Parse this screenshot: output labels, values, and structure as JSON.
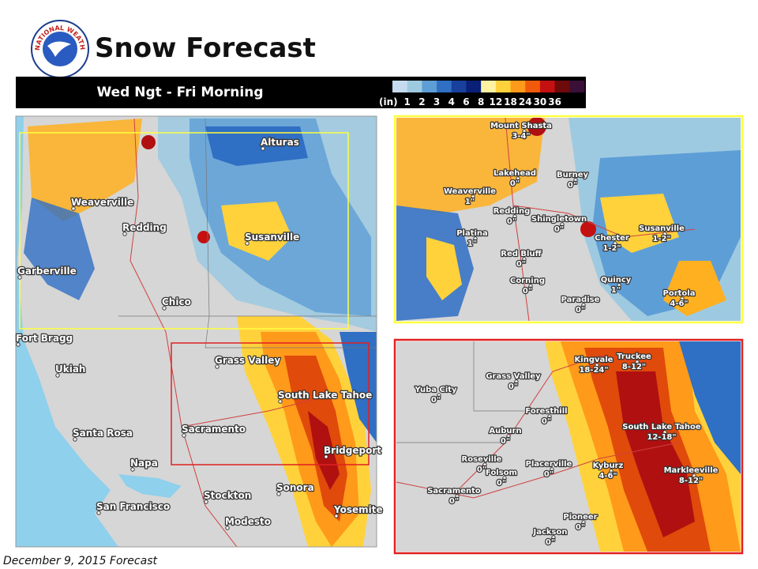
{
  "header": {
    "title": "Snow Forecast",
    "logo_text": "NATIONAL WEATHER SERVICE"
  },
  "banner": {
    "period": "Wed Ngt - Fri Morning"
  },
  "legend": {
    "unit": "(in)",
    "labels": [
      "1",
      "2",
      "3",
      "4",
      "6",
      "8",
      "12",
      "18",
      "24",
      "30",
      "36"
    ],
    "colors": [
      "#c6dbef",
      "#9ecae1",
      "#5e9ed6",
      "#2f6fc4",
      "#17419c",
      "#0a1f78",
      "#fff2a0",
      "#ffd23c",
      "#ff9a1a",
      "#f05a0a",
      "#c41010",
      "#6e0a0a",
      "#3b1038"
    ]
  },
  "main_map": {
    "places": [
      "Alturas",
      "Weaverville",
      "Redding",
      "Susanville",
      "Garberville",
      "Chico",
      "Fort Bragg",
      "Ukiah",
      "Grass Valley",
      "South Lake Tahoe",
      "Santa Rosa",
      "Sacramento",
      "Bridgeport",
      "Napa",
      "San Francisco",
      "Stockton",
      "Sonora",
      "Yosemite",
      "Modesto"
    ]
  },
  "north_inset": {
    "places": [
      {
        "name": "Mount Shasta",
        "amount": "3-4\""
      },
      {
        "name": "Lakehead",
        "amount": "0\""
      },
      {
        "name": "Burney",
        "amount": "0\""
      },
      {
        "name": "Weaverville",
        "amount": "1\""
      },
      {
        "name": "Redding",
        "amount": "0\""
      },
      {
        "name": "Shingletown",
        "amount": "0\""
      },
      {
        "name": "Platina",
        "amount": "1\""
      },
      {
        "name": "Chester",
        "amount": "1-2\""
      },
      {
        "name": "Susanville",
        "amount": "1-2\""
      },
      {
        "name": "Red Bluff",
        "amount": "0\""
      },
      {
        "name": "Corning",
        "amount": "0\""
      },
      {
        "name": "Quincy",
        "amount": "1\""
      },
      {
        "name": "Paradise",
        "amount": "0\""
      },
      {
        "name": "Portola",
        "amount": "4-6\""
      }
    ]
  },
  "south_inset": {
    "places": [
      {
        "name": "Kingvale",
        "amount": "18-24\""
      },
      {
        "name": "Truckee",
        "amount": "8-12\""
      },
      {
        "name": "Grass Valley",
        "amount": "0\""
      },
      {
        "name": "Yuba City",
        "amount": "0\""
      },
      {
        "name": "Foresthill",
        "amount": "0\""
      },
      {
        "name": "Auburn",
        "amount": "0\""
      },
      {
        "name": "South Lake Tahoe",
        "amount": "12-18\""
      },
      {
        "name": "Roseville",
        "amount": "0\""
      },
      {
        "name": "Placerville",
        "amount": "0\""
      },
      {
        "name": "Kyburz",
        "amount": "4-6\""
      },
      {
        "name": "Folsom",
        "amount": "0\""
      },
      {
        "name": "Markleeville",
        "amount": "8-12\""
      },
      {
        "name": "Sacramento",
        "amount": "0\""
      },
      {
        "name": "Pioneer",
        "amount": "0\""
      },
      {
        "name": "Jackson",
        "amount": "0\""
      }
    ]
  },
  "footer": {
    "note": "December 9, 2015 Forecast"
  }
}
